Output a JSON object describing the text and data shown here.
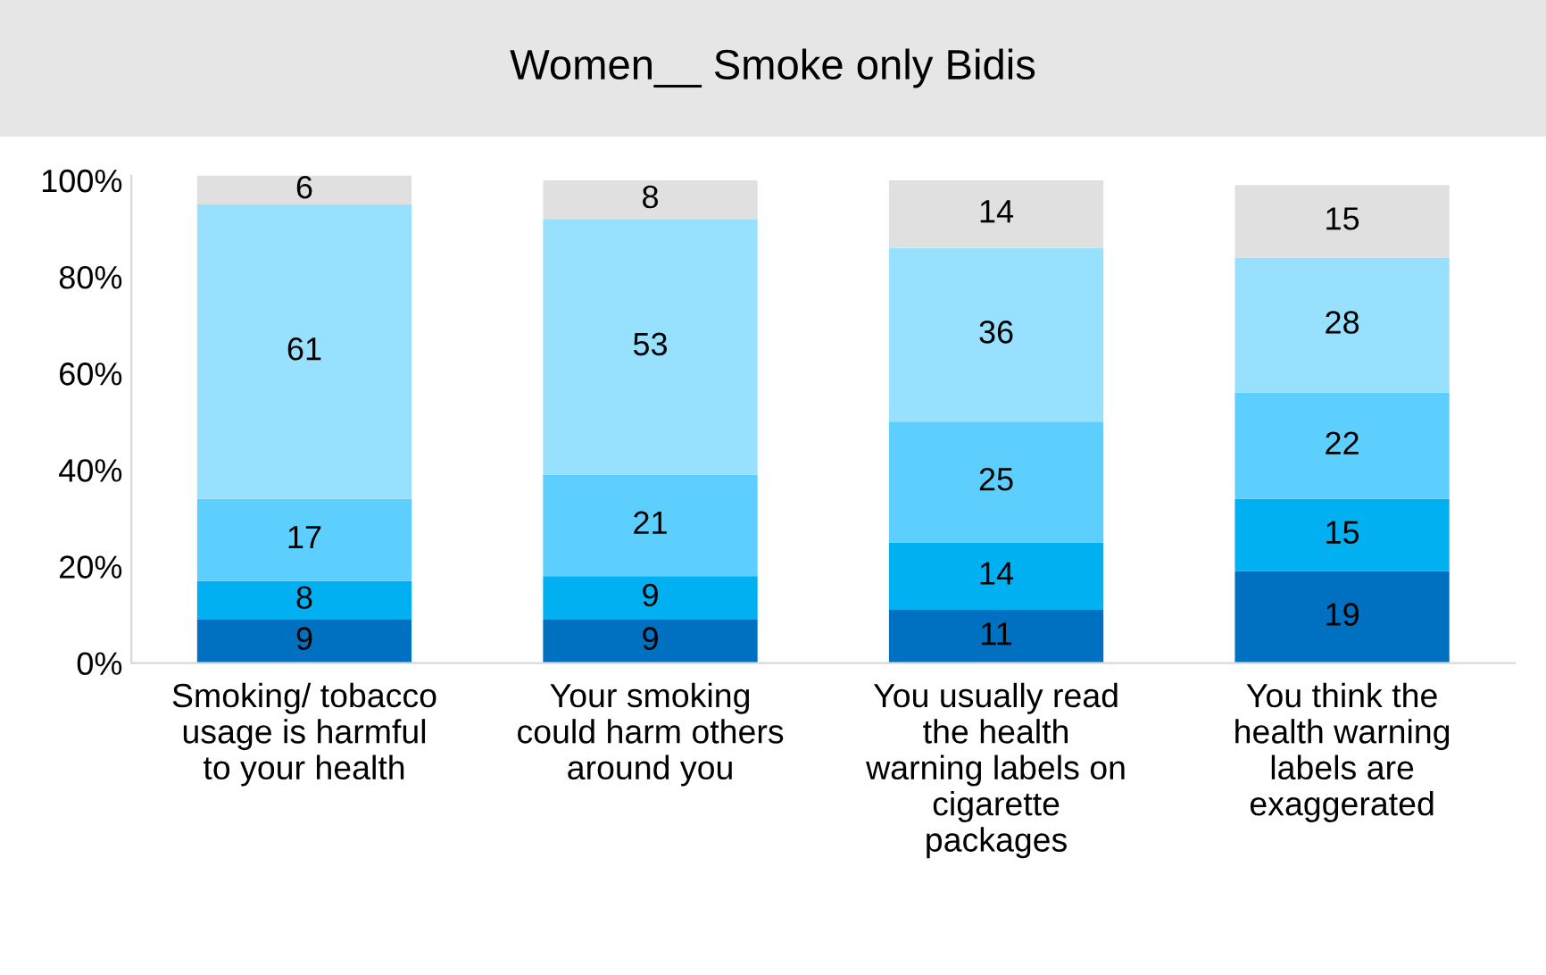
{
  "chart_data": {
    "type": "bar",
    "stacked": true,
    "title": "Women__ Smoke only Bidis",
    "categories": [
      "Smoking/ tobacco\nusage is harmful\nto your health",
      "Your smoking\ncould harm others\naround you",
      "You usually read\nthe health\nwarning labels on\ncigarette\npackages",
      "You think the\nhealth warning\nlabels are\nexaggerated"
    ],
    "series": [
      {
        "color": "#0070c0",
        "values": [
          9,
          9,
          11,
          19
        ]
      },
      {
        "color": "#00b0f0",
        "values": [
          8,
          9,
          14,
          15
        ]
      },
      {
        "color": "#5ccfff",
        "values": [
          17,
          21,
          25,
          22
        ]
      },
      {
        "color": "#97e1ff",
        "values": [
          61,
          53,
          36,
          28
        ]
      },
      {
        "color": "#e0e0e0",
        "values": [
          6,
          8,
          14,
          15
        ]
      }
    ],
    "ylim": [
      0,
      101
    ],
    "yticks": [
      {
        "value": 0,
        "label": "0%"
      },
      {
        "value": 20,
        "label": "20%"
      },
      {
        "value": 40,
        "label": "40%"
      },
      {
        "value": 60,
        "label": "60%"
      },
      {
        "value": 80,
        "label": "80%"
      },
      {
        "value": 100,
        "label": "100%"
      }
    ],
    "data_labels": true,
    "grid": false,
    "legend": false
  }
}
